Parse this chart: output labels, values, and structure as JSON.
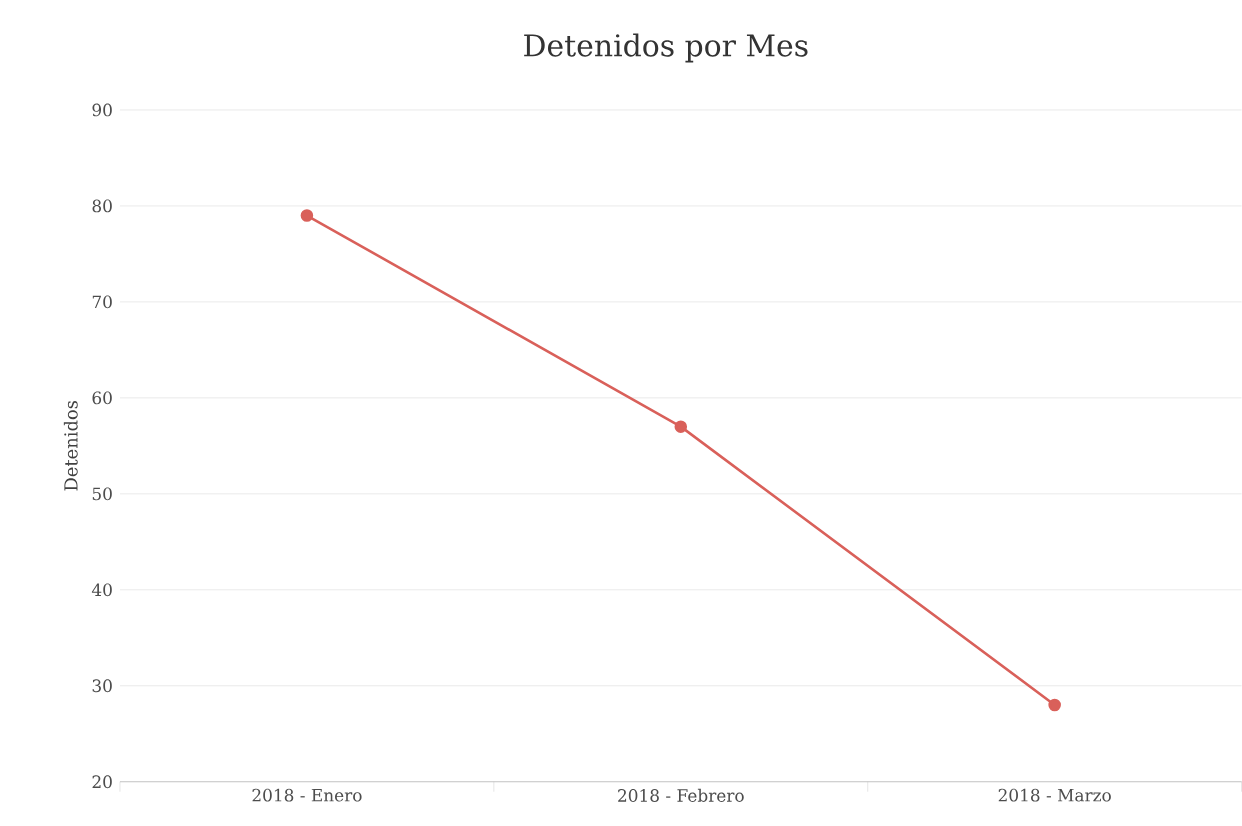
{
  "chart_data": {
    "type": "line",
    "title": "Detenidos por Mes",
    "ylabel": "Detenidos",
    "categories": [
      "2018 - Enero",
      "2018 - Febrero",
      "2018 - Marzo"
    ],
    "series": [
      {
        "color": "#d9605a",
        "values": [
          79,
          57,
          28
        ]
      }
    ],
    "ylim": [
      20,
      90
    ],
    "yticks": [
      20,
      30,
      40,
      50,
      60,
      70,
      80,
      90
    ],
    "grid": "y",
    "marker": "circle",
    "line_style": "solid"
  }
}
